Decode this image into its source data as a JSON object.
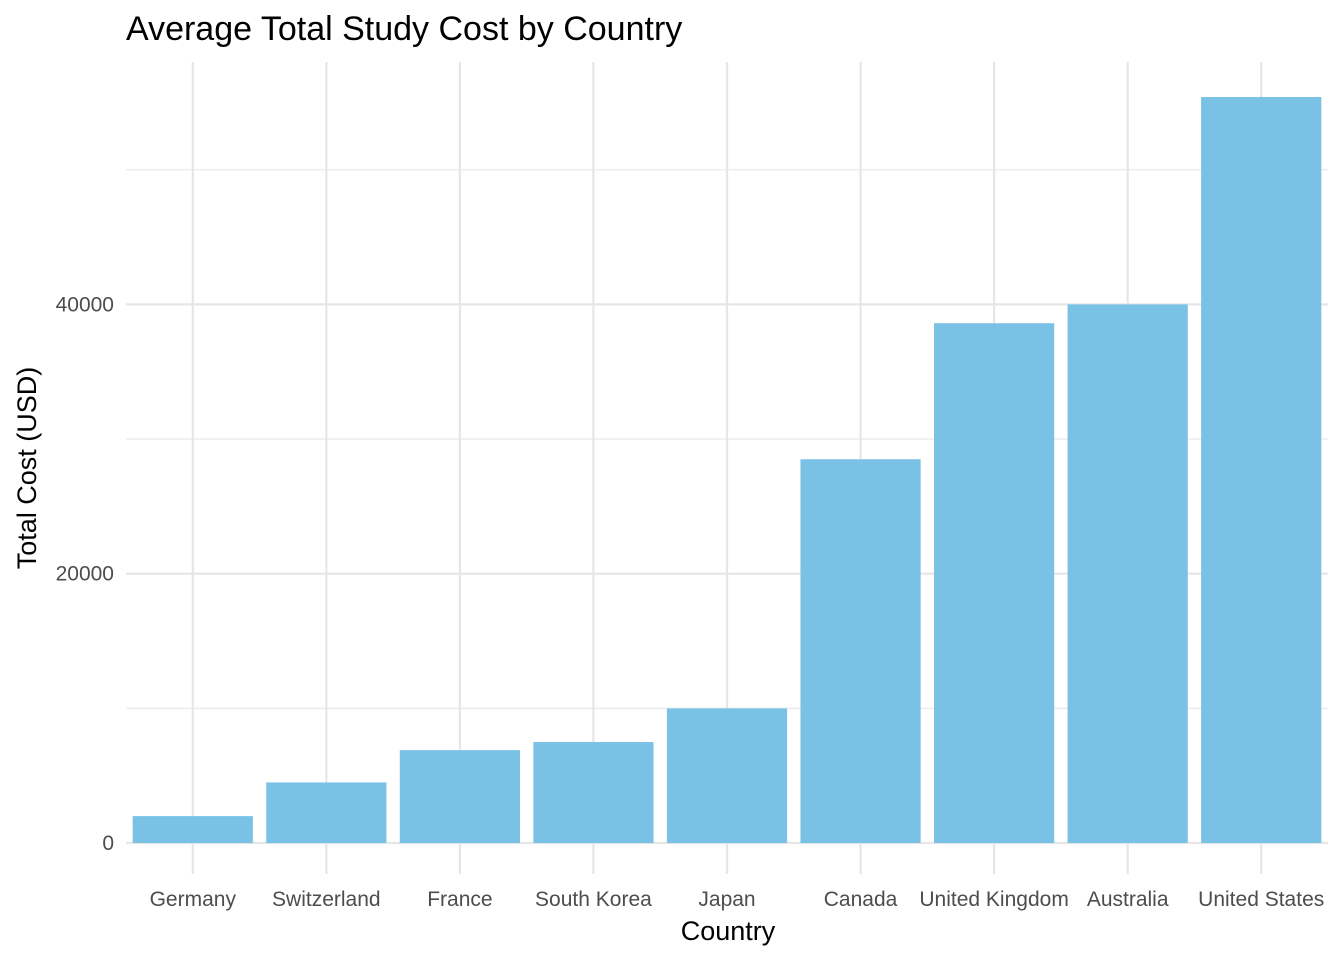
{
  "chart_data": {
    "type": "bar",
    "title": "Average Total Study Cost by Country",
    "xlabel": "Country",
    "ylabel": "Total Cost (USD)",
    "categories": [
      "Germany",
      "Switzerland",
      "France",
      "South Korea",
      "Japan",
      "Canada",
      "United Kingdom",
      "Australia",
      "United States"
    ],
    "values": [
      2000,
      4500,
      6900,
      7500,
      10000,
      28500,
      38600,
      40000,
      55400
    ],
    "ylim": [
      -2300,
      58000
    ],
    "yticks": [
      0,
      20000,
      40000
    ],
    "yticks_minor": [
      10000,
      30000,
      50000
    ],
    "grid": true,
    "legend": "none",
    "colors": {
      "bar": "#7ac2e5",
      "grid": "#e6e6e6",
      "text": "#000000",
      "tick_text": "#4d4d4d",
      "background": "#ffffff"
    }
  }
}
